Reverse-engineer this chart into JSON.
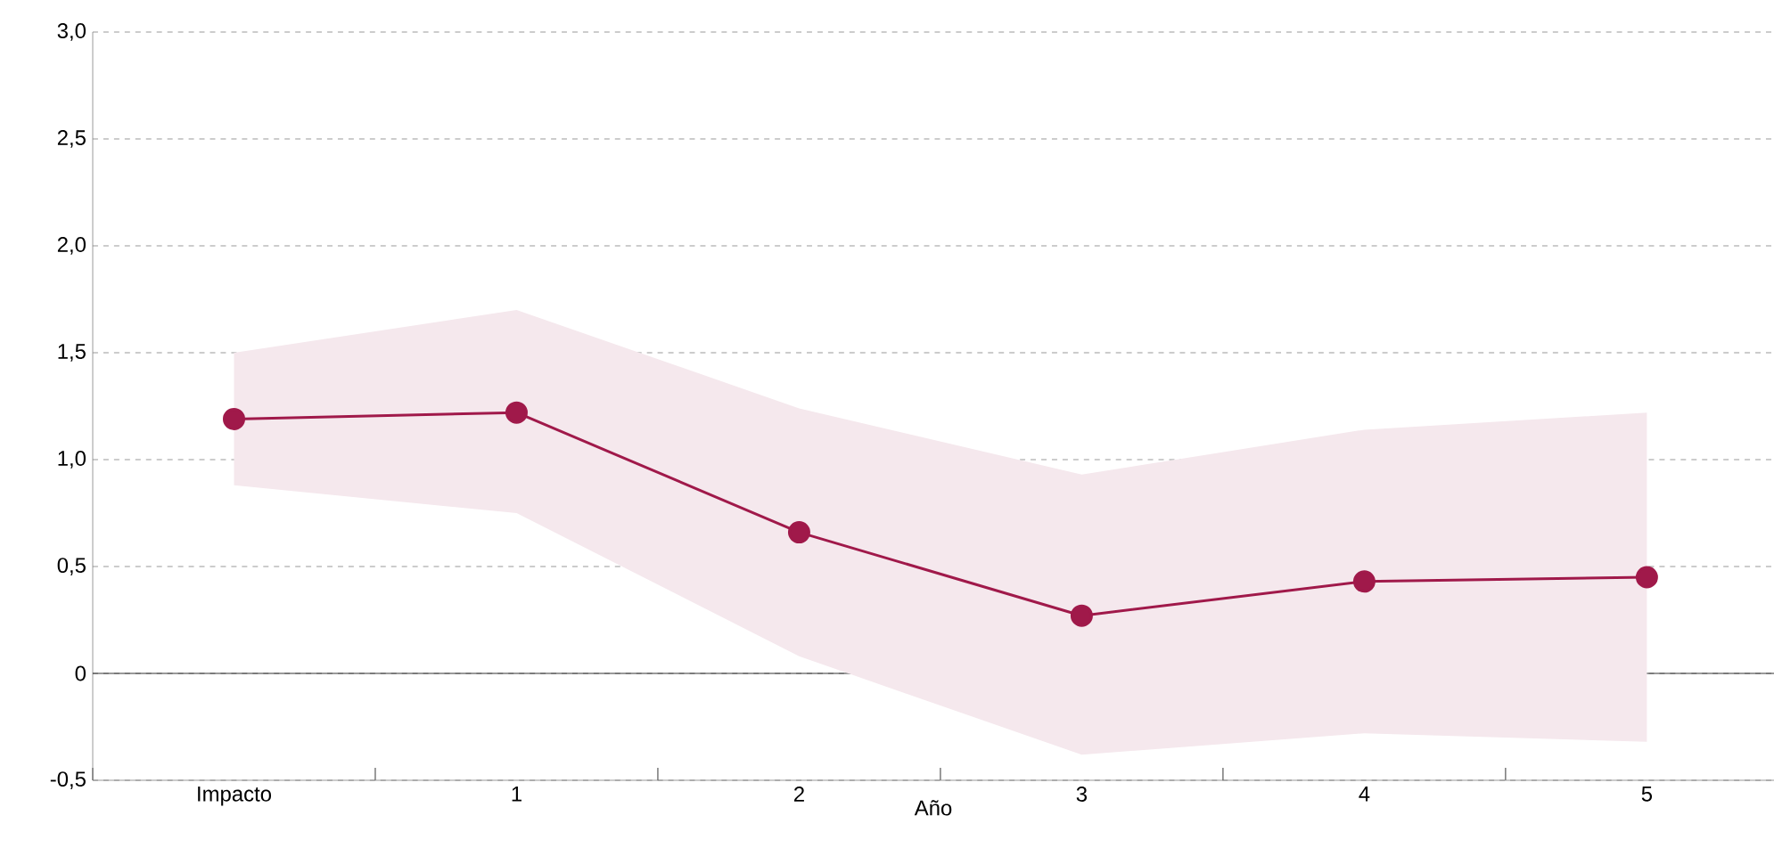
{
  "chart_data": {
    "type": "line",
    "xlabel": "Año",
    "categories": [
      "Impacto",
      "1",
      "2",
      "3",
      "4",
      "5"
    ],
    "series": [
      {
        "color": "#a0194a",
        "values": [
          1.19,
          1.22,
          0.66,
          0.27,
          0.43,
          0.45
        ],
        "lower": [
          0.88,
          0.75,
          0.08,
          -0.38,
          -0.28,
          -0.32
        ],
        "upper": [
          1.5,
          1.7,
          1.24,
          0.93,
          1.14,
          1.22
        ]
      }
    ],
    "ylim": [
      -0.5,
      3
    ],
    "yticks": [
      {
        "value": -0.5,
        "label": "-0,5"
      },
      0,
      {
        "value": 0.5,
        "label": "0,5"
      },
      {
        "value": 1,
        "label": "1,0"
      },
      {
        "value": 1.5,
        "label": "1,5"
      },
      {
        "value": 2,
        "label": "2,0"
      },
      {
        "value": 2.5,
        "label": "2,5"
      },
      {
        "value": 3,
        "label": "3,0"
      }
    ],
    "grid": "y",
    "marker": "circle",
    "line_style": "solid"
  }
}
